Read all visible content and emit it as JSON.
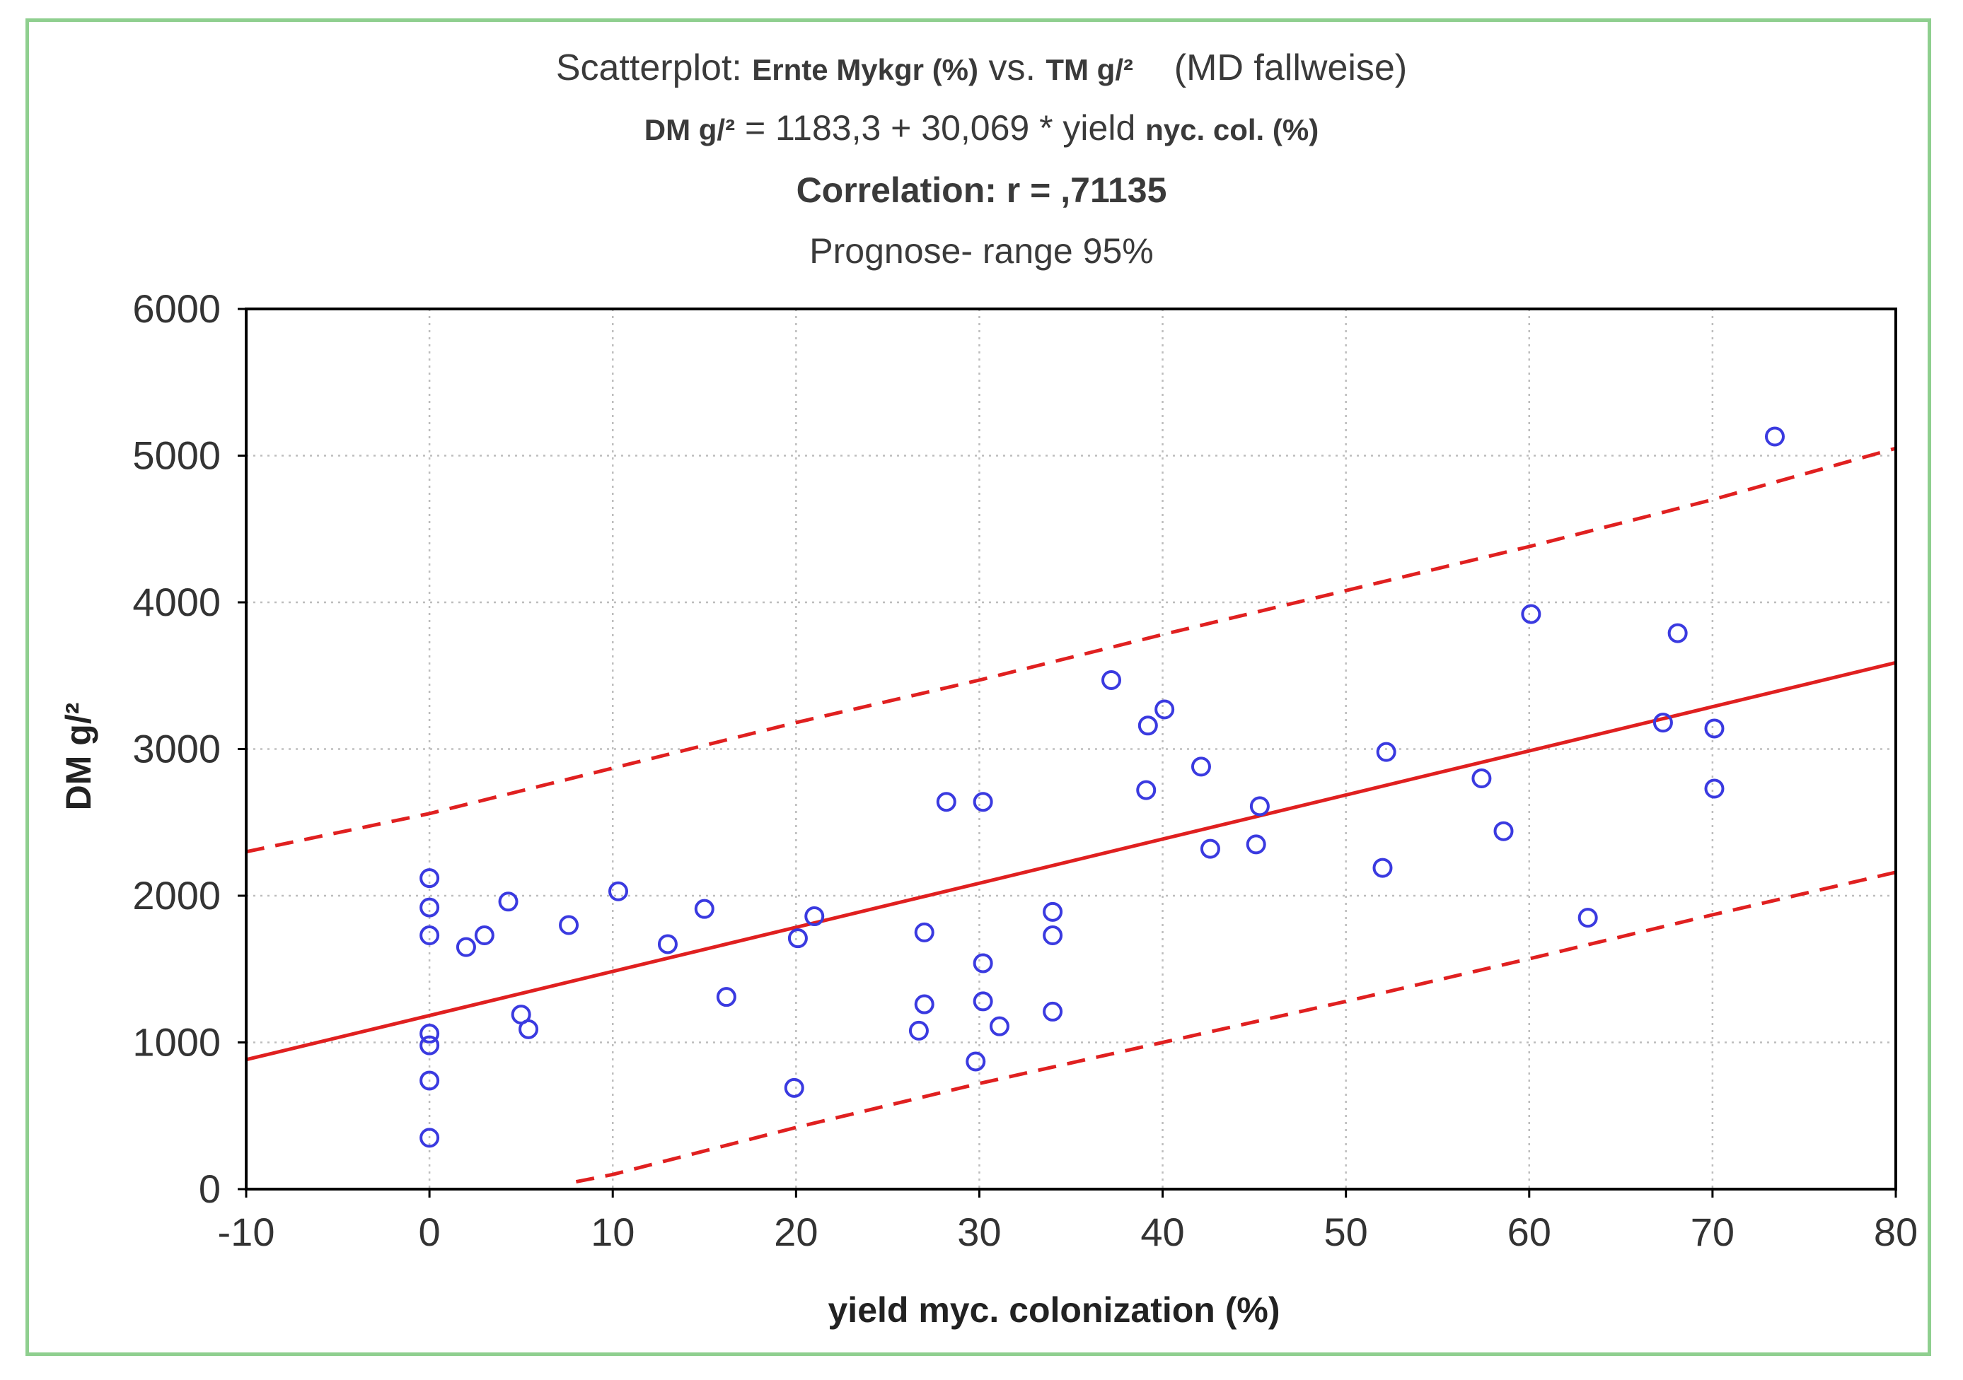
{
  "title": {
    "line1_prefix": "Scatterplot: ",
    "line1_var1": "Ernte Mykgr (%)",
    "line1_vs": " vs. ",
    "line1_var2": "TM g/²",
    "line1_suffix": "(MD fallweise)",
    "line2_lhs": "DM g/²",
    "line2_eq": " = 1183,3 + 30,069 * yield ",
    "line2_var": "nyc. col. (%)",
    "line3": "Correlation: r = ,71135",
    "line4": "Prognose- range 95%"
  },
  "chart_data": {
    "type": "scatter",
    "title": "Scatterplot: Ernte Mykgr (%) vs. TM g/² (MD fallweise)",
    "xlabel": "yield myc. colonization (%)",
    "ylabel": "DM g/²",
    "xlim": [
      -10,
      80
    ],
    "ylim": [
      0,
      6000
    ],
    "x_ticks": [
      -10,
      0,
      10,
      20,
      30,
      40,
      50,
      60,
      70,
      80
    ],
    "y_ticks": [
      0,
      1000,
      2000,
      3000,
      4000,
      5000,
      6000
    ],
    "grid": true,
    "colors": {
      "points": "#3a3ae0",
      "line": "#e02020",
      "axis": "#000000",
      "grid": "#bdbdbd",
      "frame": "#8fcf8f"
    },
    "regression": {
      "intercept": 1183.3,
      "slope": 30.069,
      "r": 0.71135
    },
    "prediction_band": {
      "level": "95%",
      "upper": [
        [
          -10,
          2300
        ],
        [
          0,
          2560
        ],
        [
          10,
          2870
        ],
        [
          20,
          3180
        ],
        [
          30,
          3470
        ],
        [
          40,
          3780
        ],
        [
          50,
          4080
        ],
        [
          60,
          4380
        ],
        [
          70,
          4700
        ],
        [
          80,
          5050
        ]
      ],
      "lower": [
        [
          8,
          50
        ],
        [
          10,
          100
        ],
        [
          20,
          420
        ],
        [
          30,
          720
        ],
        [
          40,
          1000
        ],
        [
          50,
          1280
        ],
        [
          60,
          1570
        ],
        [
          70,
          1870
        ],
        [
          80,
          2160
        ]
      ]
    },
    "points": [
      [
        0,
        2120
      ],
      [
        0,
        1920
      ],
      [
        0,
        1730
      ],
      [
        0,
        1060
      ],
      [
        0,
        980
      ],
      [
        0,
        740
      ],
      [
        0,
        350
      ],
      [
        2,
        1650
      ],
      [
        3,
        1730
      ],
      [
        4.3,
        1960
      ],
      [
        5,
        1190
      ],
      [
        5.4,
        1090
      ],
      [
        7.6,
        1800
      ],
      [
        10.3,
        2030
      ],
      [
        13,
        1670
      ],
      [
        15,
        1910
      ],
      [
        16.2,
        1310
      ],
      [
        19.9,
        690
      ],
      [
        20.1,
        1710
      ],
      [
        21,
        1860
      ],
      [
        26.7,
        1080
      ],
      [
        27,
        1750
      ],
      [
        27,
        1260
      ],
      [
        28.2,
        2640
      ],
      [
        29.8,
        870
      ],
      [
        30.2,
        2640
      ],
      [
        30.2,
        1540
      ],
      [
        30.2,
        1280
      ],
      [
        31.1,
        1110
      ],
      [
        34,
        1890
      ],
      [
        34,
        1730
      ],
      [
        34,
        1210
      ],
      [
        37.2,
        3470
      ],
      [
        39.1,
        2720
      ],
      [
        39.2,
        3160
      ],
      [
        40.1,
        3270
      ],
      [
        42.1,
        2880
      ],
      [
        42.6,
        2320
      ],
      [
        45.1,
        2350
      ],
      [
        45.3,
        2610
      ],
      [
        52,
        2190
      ],
      [
        52.2,
        2980
      ],
      [
        57.4,
        2800
      ],
      [
        58.6,
        2440
      ],
      [
        60.1,
        3920
      ],
      [
        63.2,
        1850
      ],
      [
        67.3,
        3180
      ],
      [
        68.1,
        3790
      ],
      [
        70.1,
        3140
      ],
      [
        70.1,
        2730
      ],
      [
        73.4,
        5130
      ]
    ]
  }
}
